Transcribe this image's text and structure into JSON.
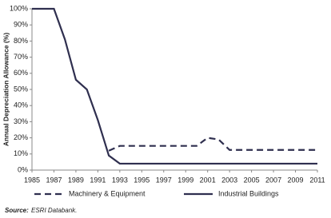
{
  "chart_data": {
    "type": "line",
    "y_label": "Annual Depreciation Allowance (%)",
    "x": [
      1985,
      1986,
      1987,
      1988,
      1989,
      1990,
      1991,
      1992,
      1993,
      1994,
      1995,
      1996,
      1997,
      1998,
      1999,
      2000,
      2001,
      2002,
      2003,
      2004,
      2005,
      2006,
      2007,
      2008,
      2009,
      2010,
      2011
    ],
    "series": [
      {
        "name": "Machinery & Equipment",
        "color": "#2f2f4f",
        "dashed": true,
        "values": [
          null,
          null,
          null,
          null,
          null,
          null,
          null,
          12,
          15,
          15,
          15,
          15,
          15,
          15,
          15,
          15,
          20,
          19,
          12.5,
          12.5,
          12.5,
          12.5,
          12.5,
          12.5,
          12.5,
          12.5,
          12.5
        ]
      },
      {
        "name": "Industrial Buildings",
        "color": "#2f2f4f",
        "dashed": false,
        "values": [
          100,
          100,
          100,
          81,
          56,
          50,
          31,
          9,
          4,
          4,
          4,
          4,
          4,
          4,
          4,
          4,
          4,
          4,
          4,
          4,
          4,
          4,
          4,
          4,
          4,
          4,
          4
        ]
      }
    ],
    "xlim": [
      1985,
      2011
    ],
    "xticks": [
      1985,
      1987,
      1989,
      1991,
      1993,
      1995,
      1997,
      1999,
      2001,
      2003,
      2005,
      2007,
      2009,
      2011
    ],
    "ylim": [
      0,
      100
    ],
    "yticks": [
      {
        "value": 0,
        "label": "0%"
      },
      {
        "value": 10,
        "label": "10%"
      },
      {
        "value": 20,
        "label": "20%"
      },
      {
        "value": 30,
        "label": "30%"
      },
      {
        "value": 40,
        "label": "40%"
      },
      {
        "value": 50,
        "label": "50%"
      },
      {
        "value": 60,
        "label": "60%"
      },
      {
        "value": 70,
        "label": "70%"
      },
      {
        "value": 80,
        "label": "80%"
      },
      {
        "value": 90,
        "label": "90%"
      },
      {
        "value": 100,
        "label": "100%"
      }
    ],
    "grid": false,
    "legend": "bottom",
    "source_label": "Source:",
    "source": "ESRI Databank."
  }
}
